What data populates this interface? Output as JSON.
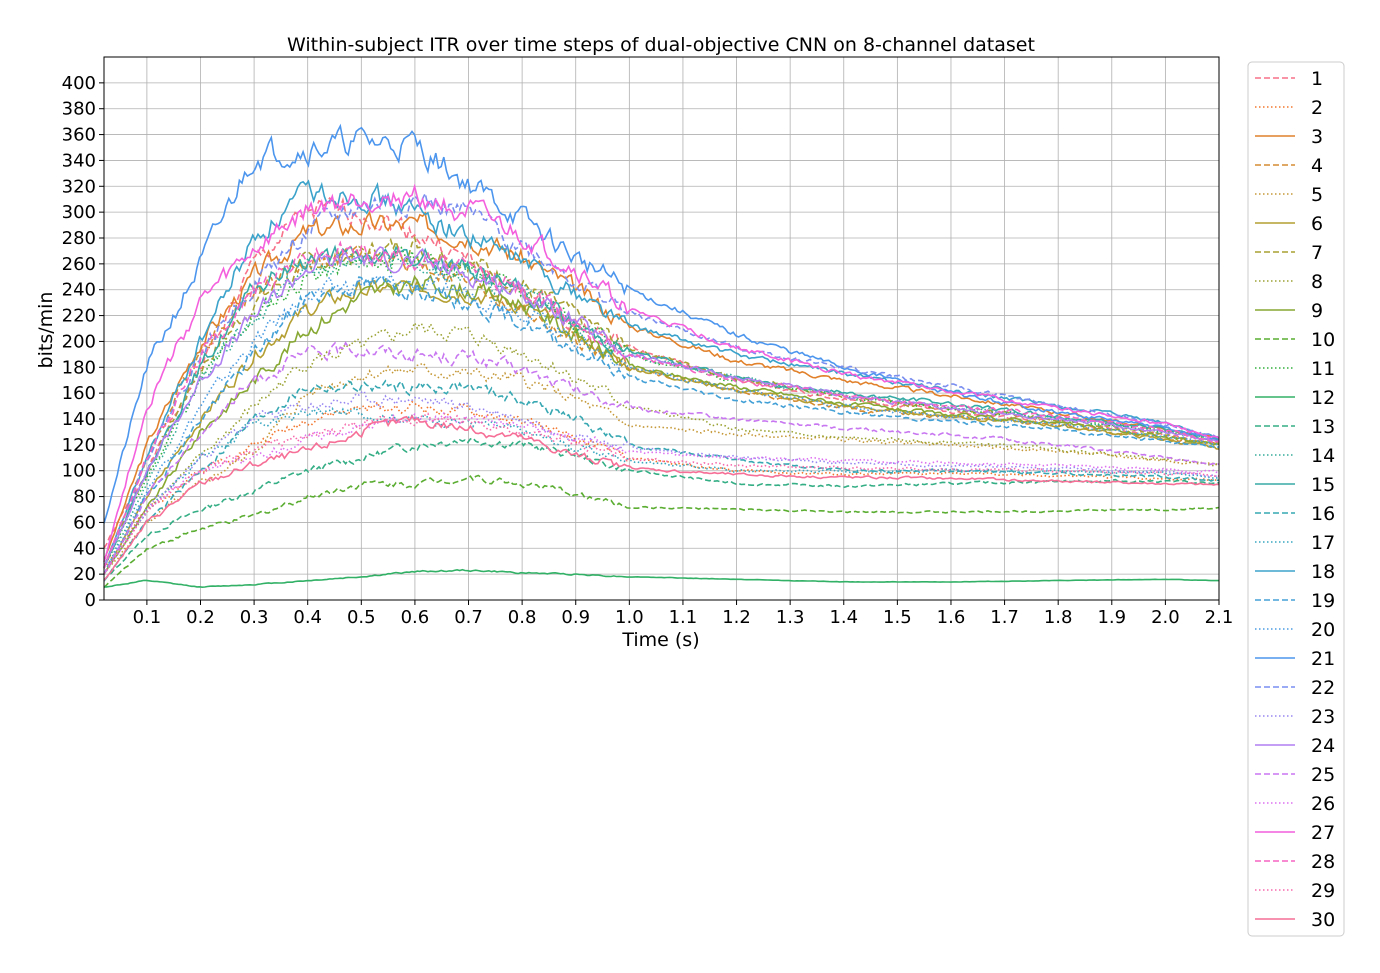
{
  "chart_data": {
    "type": "line",
    "title": "Within-subject ITR over time steps of dual-objective CNN on 8-channel dataset",
    "xlabel": "Time (s)",
    "ylabel": "bits/min",
    "xlim": [
      0.02,
      2.1
    ],
    "ylim": [
      0,
      420
    ],
    "x_ticks": [
      "0.1",
      "0.2",
      "0.3",
      "0.4",
      "0.5",
      "0.6",
      "0.7",
      "0.8",
      "0.9",
      "1.0",
      "1.1",
      "1.2",
      "1.3",
      "1.4",
      "1.5",
      "1.6",
      "1.7",
      "1.8",
      "1.9",
      "2.0",
      "2.1"
    ],
    "y_ticks": [
      "0",
      "20",
      "40",
      "60",
      "80",
      "100",
      "120",
      "140",
      "160",
      "180",
      "200",
      "220",
      "240",
      "260",
      "280",
      "300",
      "320",
      "340",
      "360",
      "380",
      "400"
    ],
    "grid": true,
    "legend_position": "outside-right",
    "x_key_times": [
      0.02,
      0.1,
      0.2,
      0.3,
      0.4,
      0.5,
      0.6,
      0.7,
      0.8,
      0.9,
      1.0,
      1.2,
      1.4,
      1.6,
      1.8,
      2.0,
      2.1
    ],
    "series": [
      {
        "name": "1",
        "color": "#f77189",
        "style": "dashed",
        "values": [
          40,
          100,
          180,
          260,
          300,
          300,
          285,
          262,
          238,
          215,
          195,
          170,
          155,
          146,
          138,
          128,
          122
        ]
      },
      {
        "name": "2",
        "color": "#f2762e",
        "style": "dotted",
        "values": [
          25,
          70,
          100,
          120,
          140,
          148,
          150,
          145,
          138,
          125,
          110,
          100,
          97,
          98,
          96,
          94,
          93
        ]
      },
      {
        "name": "3",
        "color": "#e1812c",
        "style": "solid",
        "values": [
          30,
          120,
          200,
          250,
          285,
          290,
          290,
          283,
          265,
          240,
          212,
          185,
          170,
          158,
          145,
          132,
          124
        ]
      },
      {
        "name": "4",
        "color": "#d58c32",
        "style": "dashed",
        "values": [
          25,
          110,
          195,
          240,
          262,
          265,
          262,
          245,
          225,
          200,
          180,
          162,
          148,
          142,
          135,
          125,
          120
        ]
      },
      {
        "name": "5",
        "color": "#c59837",
        "style": "dotted",
        "values": [
          20,
          60,
          90,
          115,
          160,
          175,
          178,
          175,
          170,
          155,
          135,
          128,
          124,
          120,
          115,
          108,
          105
        ]
      },
      {
        "name": "6",
        "color": "#b49f32",
        "style": "solid",
        "values": [
          20,
          80,
          140,
          190,
          225,
          240,
          240,
          238,
          228,
          205,
          180,
          162,
          150,
          142,
          135,
          124,
          117
        ]
      },
      {
        "name": "7",
        "color": "#a8a032",
        "style": "dashed",
        "values": [
          25,
          100,
          180,
          230,
          260,
          268,
          275,
          263,
          243,
          220,
          195,
          172,
          157,
          148,
          140,
          128,
          120
        ]
      },
      {
        "name": "8",
        "color": "#9aa232",
        "style": "dotted",
        "values": [
          20,
          70,
          110,
          150,
          185,
          195,
          210,
          205,
          192,
          172,
          150,
          132,
          125,
          122,
          117,
          109,
          105
        ]
      },
      {
        "name": "9",
        "color": "#87a832",
        "style": "solid",
        "values": [
          20,
          70,
          130,
          170,
          210,
          235,
          245,
          240,
          230,
          205,
          180,
          165,
          152,
          143,
          137,
          126,
          120
        ]
      },
      {
        "name": "10",
        "color": "#5aad31",
        "style": "dashed",
        "values": [
          10,
          40,
          55,
          65,
          80,
          90,
          90,
          95,
          90,
          82,
          72,
          70,
          68,
          68,
          69,
          70,
          71
        ]
      },
      {
        "name": "11",
        "color": "#33b03f",
        "style": "dotted",
        "values": [
          25,
          95,
          170,
          220,
          250,
          260,
          265,
          255,
          240,
          215,
          190,
          170,
          158,
          148,
          140,
          130,
          124
        ]
      },
      {
        "name": "12",
        "color": "#32b166",
        "style": "solid",
        "values": [
          10,
          15,
          10,
          12,
          15,
          18,
          22,
          23,
          21,
          20,
          18,
          16,
          14,
          14,
          15,
          16,
          15
        ]
      },
      {
        "name": "13",
        "color": "#34ae84",
        "style": "dashed",
        "values": [
          15,
          50,
          70,
          85,
          100,
          110,
          120,
          125,
          120,
          112,
          100,
          90,
          88,
          90,
          92,
          92,
          90
        ]
      },
      {
        "name": "14",
        "color": "#35ac98",
        "style": "dotted",
        "values": [
          20,
          90,
          170,
          220,
          255,
          260,
          265,
          252,
          238,
          213,
          190,
          172,
          158,
          150,
          140,
          130,
          123
        ]
      },
      {
        "name": "15",
        "color": "#36aaa6",
        "style": "solid",
        "values": [
          25,
          100,
          180,
          240,
          265,
          265,
          265,
          258,
          238,
          213,
          192,
          172,
          160,
          152,
          142,
          132,
          122
        ]
      },
      {
        "name": "16",
        "color": "#37a8b2",
        "style": "dashed",
        "values": [
          15,
          60,
          100,
          140,
          165,
          165,
          165,
          165,
          155,
          140,
          120,
          108,
          100,
          100,
          98,
          95,
          92
        ]
      },
      {
        "name": "17",
        "color": "#38a6bf",
        "style": "dotted",
        "values": [
          20,
          70,
          110,
          135,
          145,
          145,
          140,
          138,
          130,
          118,
          108,
          100,
          100,
          100,
          100,
          98,
          95
        ]
      },
      {
        "name": "18",
        "color": "#3ba3cb",
        "style": "solid",
        "values": [
          25,
          110,
          200,
          280,
          315,
          315,
          300,
          282,
          262,
          238,
          212,
          190,
          175,
          162,
          150,
          137,
          125
        ]
      },
      {
        "name": "19",
        "color": "#43a0d6",
        "style": "dashed",
        "values": [
          20,
          80,
          140,
          190,
          235,
          245,
          240,
          230,
          215,
          195,
          172,
          155,
          145,
          138,
          132,
          123,
          118
        ]
      },
      {
        "name": "20",
        "color": "#4c9ce2",
        "style": "dotted",
        "values": [
          20,
          85,
          150,
          200,
          235,
          245,
          245,
          238,
          225,
          202,
          180,
          162,
          150,
          142,
          136,
          126,
          121
        ]
      },
      {
        "name": "21",
        "color": "#4d96ee",
        "style": "solid",
        "values": [
          60,
          180,
          260,
          345,
          350,
          355,
          352,
          322,
          295,
          265,
          240,
          205,
          180,
          160,
          145,
          133,
          124
        ]
      },
      {
        "name": "22",
        "color": "#7a8ef0",
        "style": "dashed",
        "values": [
          25,
          110,
          190,
          245,
          285,
          305,
          310,
          298,
          275,
          248,
          222,
          195,
          180,
          165,
          150,
          136,
          126
        ]
      },
      {
        "name": "23",
        "color": "#9887f1",
        "style": "dotted",
        "values": [
          20,
          70,
          110,
          140,
          150,
          155,
          155,
          150,
          140,
          128,
          118,
          110,
          106,
          104,
          102,
          99,
          96
        ]
      },
      {
        "name": "24",
        "color": "#b07ff2",
        "style": "solid",
        "values": [
          25,
          100,
          170,
          220,
          258,
          265,
          262,
          252,
          238,
          214,
          190,
          172,
          158,
          148,
          140,
          130,
          123
        ]
      },
      {
        "name": "25",
        "color": "#c877f1",
        "style": "dashed",
        "values": [
          20,
          80,
          130,
          170,
          190,
          195,
          190,
          188,
          178,
          162,
          148,
          140,
          133,
          128,
          120,
          110,
          105
        ]
      },
      {
        "name": "26",
        "color": "#dd71f0",
        "style": "dotted",
        "values": [
          20,
          70,
          100,
          110,
          125,
          135,
          140,
          142,
          135,
          125,
          115,
          110,
          108,
          106,
          104,
          101,
          99
        ]
      },
      {
        "name": "27",
        "color": "#f45fdd",
        "style": "solid",
        "values": [
          30,
          150,
          230,
          270,
          300,
          310,
          312,
          300,
          280,
          255,
          225,
          195,
          175,
          162,
          148,
          136,
          124
        ]
      },
      {
        "name": "28",
        "color": "#f564c3",
        "style": "dashed",
        "values": [
          25,
          110,
          190,
          240,
          268,
          270,
          265,
          255,
          240,
          215,
          190,
          170,
          158,
          150,
          142,
          131,
          122
        ]
      },
      {
        "name": "29",
        "color": "#f66aac",
        "style": "dotted",
        "values": [
          20,
          70,
          100,
          118,
          125,
          135,
          140,
          138,
          130,
          120,
          110,
          104,
          102,
          101,
          100,
          98,
          96
        ]
      },
      {
        "name": "30",
        "color": "#f66f97",
        "style": "solid",
        "values": [
          15,
          60,
          90,
          105,
          115,
          130,
          140,
          132,
          125,
          112,
          102,
          97,
          95,
          94,
          92,
          90,
          89
        ]
      }
    ]
  }
}
